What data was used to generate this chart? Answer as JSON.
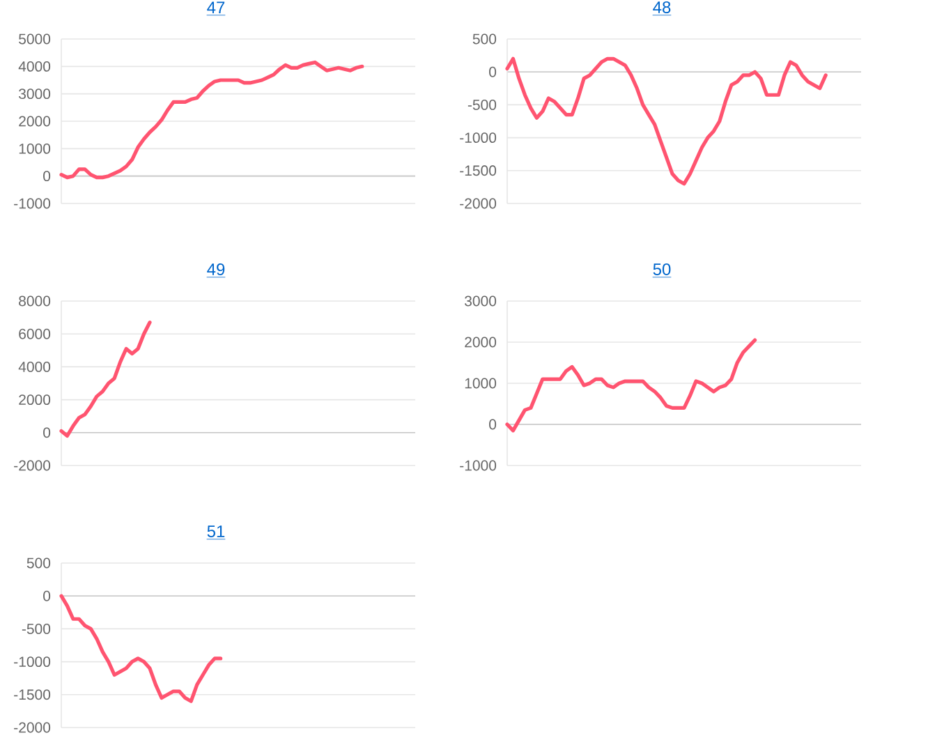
{
  "chart_data": [
    {
      "type": "line",
      "title": "47",
      "color": "#ff5470",
      "grid": "y",
      "ylim": [
        -1000,
        5000
      ],
      "yticks": [
        -1000,
        0,
        1000,
        2000,
        3000,
        4000,
        5000
      ],
      "categories": [
        null,
        null,
        null,
        null,
        null,
        null,
        null,
        null,
        null,
        null,
        null,
        null,
        null,
        null,
        null,
        null,
        null,
        null,
        null,
        null,
        null,
        null,
        null,
        null,
        null,
        null,
        null,
        null,
        null,
        null,
        null,
        null,
        null,
        null,
        null,
        null,
        null,
        null,
        null,
        null,
        null,
        null,
        null,
        null,
        null,
        null,
        null,
        null,
        null,
        null,
        null,
        null,
        null,
        null,
        null,
        null,
        null,
        null,
        null,
        null,
        null
      ],
      "values": [
        50,
        -50,
        0,
        250,
        250,
        50,
        -50,
        -50,
        0,
        100,
        200,
        350,
        600,
        1050,
        1350,
        1600,
        1800,
        2050,
        2400,
        2700,
        2700,
        2700,
        2800,
        2850,
        3100,
        3300,
        3450,
        3500,
        3500,
        3500,
        3500,
        3400,
        3400,
        3450,
        3500,
        3600,
        3700,
        3900,
        4050,
        3950,
        3950,
        4050,
        4100,
        4150,
        4000,
        3850,
        3900,
        3950,
        3900,
        3850,
        3950,
        4000,
        null,
        null,
        null,
        null,
        null,
        null,
        null,
        null,
        null
      ]
    },
    {
      "type": "line",
      "title": "48",
      "color": "#ff5470",
      "grid": "y",
      "ylim": [
        -2000,
        500
      ],
      "yticks": [
        -2000,
        -1500,
        -1000,
        -500,
        0,
        500
      ],
      "categories": [
        null,
        null,
        null,
        null,
        null,
        null,
        null,
        null,
        null,
        null,
        null,
        null,
        null,
        null,
        null,
        null,
        null,
        null,
        null,
        null,
        null,
        null,
        null,
        null,
        null,
        null,
        null,
        null,
        null,
        null,
        null,
        null,
        null,
        null,
        null,
        null,
        null,
        null,
        null,
        null,
        null,
        null,
        null,
        null,
        null,
        null,
        null,
        null,
        null,
        null,
        null,
        null,
        null,
        null,
        null,
        null,
        null,
        null,
        null,
        null,
        null
      ],
      "values": [
        50,
        200,
        -100,
        -350,
        -550,
        -700,
        -600,
        -400,
        -450,
        -550,
        -650,
        -650,
        -400,
        -100,
        -50,
        50,
        150,
        200,
        200,
        150,
        100,
        -50,
        -250,
        -500,
        -650,
        -800,
        -1050,
        -1300,
        -1550,
        -1650,
        -1700,
        -1550,
        -1350,
        -1150,
        -1000,
        -900,
        -750,
        -450,
        -200,
        -150,
        -50,
        -50,
        0,
        -100,
        -350,
        -350,
        -350,
        -50,
        150,
        100,
        -50,
        -150,
        -200,
        -250,
        -50,
        null,
        null,
        null,
        null,
        null,
        null
      ]
    },
    {
      "type": "line",
      "title": "49",
      "color": "#ff5470",
      "grid": "y",
      "ylim": [
        -2000,
        8000
      ],
      "yticks": [
        -2000,
        0,
        2000,
        4000,
        6000,
        8000
      ],
      "categories": [
        null,
        null,
        null,
        null,
        null,
        null,
        null,
        null,
        null,
        null,
        null,
        null,
        null,
        null,
        null,
        null,
        null,
        null,
        null,
        null,
        null,
        null,
        null,
        null,
        null,
        null,
        null,
        null,
        null,
        null,
        null,
        null,
        null,
        null,
        null,
        null,
        null,
        null,
        null,
        null,
        null,
        null,
        null,
        null,
        null,
        null,
        null,
        null,
        null,
        null,
        null,
        null,
        null,
        null,
        null,
        null,
        null,
        null,
        null,
        null,
        null
      ],
      "values": [
        100,
        -200,
        400,
        900,
        1100,
        1600,
        2200,
        2500,
        3000,
        3300,
        4300,
        5100,
        4800,
        5100,
        6000,
        6700,
        null,
        null,
        null,
        null,
        null,
        null,
        null,
        null,
        null,
        null,
        null,
        null,
        null,
        null,
        null,
        null,
        null,
        null,
        null,
        null,
        null,
        null,
        null,
        null,
        null,
        null,
        null,
        null,
        null,
        null,
        null,
        null,
        null,
        null,
        null,
        null,
        null,
        null,
        null,
        null,
        null,
        null,
        null,
        null,
        null
      ]
    },
    {
      "type": "line",
      "title": "50",
      "color": "#ff5470",
      "grid": "y",
      "ylim": [
        -1000,
        3000
      ],
      "yticks": [
        -1000,
        0,
        1000,
        2000,
        3000
      ],
      "categories": [
        null,
        null,
        null,
        null,
        null,
        null,
        null,
        null,
        null,
        null,
        null,
        null,
        null,
        null,
        null,
        null,
        null,
        null,
        null,
        null,
        null,
        null,
        null,
        null,
        null,
        null,
        null,
        null,
        null,
        null,
        null,
        null,
        null,
        null,
        null,
        null,
        null,
        null,
        null,
        null,
        null,
        null,
        null,
        null,
        null,
        null,
        null,
        null,
        null,
        null,
        null,
        null,
        null,
        null,
        null,
        null,
        null,
        null,
        null,
        null,
        null
      ],
      "values": [
        0,
        -150,
        100,
        350,
        400,
        750,
        1100,
        1100,
        1100,
        1100,
        1300,
        1400,
        1200,
        950,
        1000,
        1100,
        1100,
        950,
        900,
        1000,
        1050,
        1050,
        1050,
        1050,
        900,
        800,
        650,
        450,
        400,
        400,
        400,
        700,
        1050,
        1000,
        900,
        800,
        900,
        950,
        1100,
        1500,
        1750,
        1900,
        2050,
        null,
        null,
        null,
        null,
        null,
        null,
        null,
        null,
        null,
        null,
        null,
        null,
        null,
        null,
        null,
        null,
        null,
        null
      ]
    },
    {
      "type": "line",
      "title": "51",
      "color": "#ff5470",
      "grid": "y",
      "ylim": [
        -2000,
        500
      ],
      "yticks": [
        -2000,
        -1500,
        -1000,
        -500,
        0,
        500
      ],
      "categories": [
        null,
        null,
        null,
        null,
        null,
        null,
        null,
        null,
        null,
        null,
        null,
        null,
        null,
        null,
        null,
        null,
        null,
        null,
        null,
        null,
        null,
        null,
        null,
        null,
        null,
        null,
        null,
        null,
        null,
        null,
        null,
        null,
        null,
        null,
        null,
        null,
        null,
        null,
        null,
        null,
        null,
        null,
        null,
        null,
        null,
        null,
        null,
        null,
        null,
        null,
        null,
        null,
        null,
        null,
        null,
        null,
        null,
        null,
        null,
        null,
        null
      ],
      "values": [
        0,
        -150,
        -350,
        -350,
        -450,
        -500,
        -650,
        -850,
        -1000,
        -1200,
        -1150,
        -1100,
        -1000,
        -950,
        -1000,
        -1100,
        -1350,
        -1550,
        -1500,
        -1450,
        -1450,
        -1550,
        -1600,
        -1350,
        -1200,
        -1050,
        -950,
        -950,
        null,
        null,
        null,
        null,
        null,
        null,
        null,
        null,
        null,
        null,
        null,
        null,
        null,
        null,
        null,
        null,
        null,
        null,
        null,
        null,
        null,
        null,
        null,
        null,
        null,
        null,
        null,
        null,
        null,
        null,
        null,
        null,
        null
      ]
    }
  ]
}
